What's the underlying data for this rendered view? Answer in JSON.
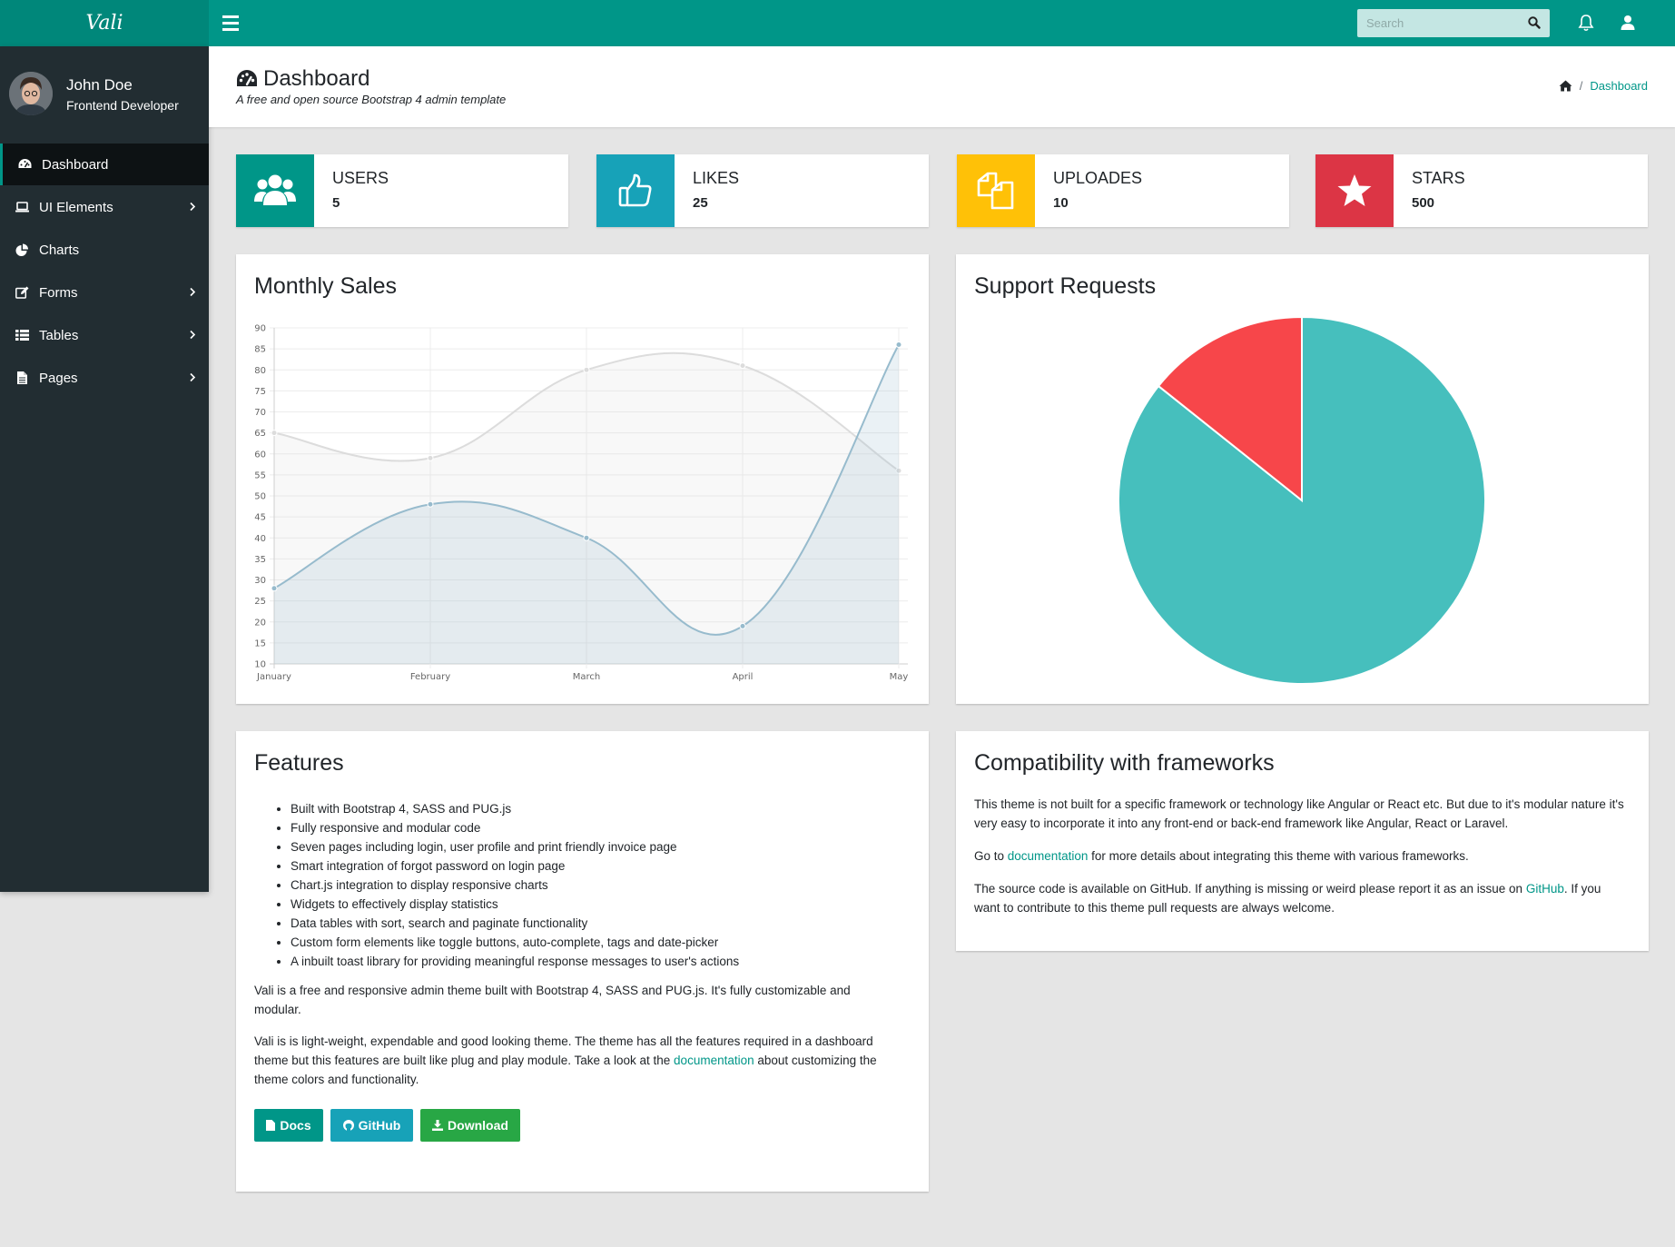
{
  "brand": "Vali",
  "search": {
    "placeholder": "Search"
  },
  "user": {
    "name": "John Doe",
    "role": "Frontend Developer"
  },
  "sidebar": {
    "items": [
      {
        "label": "Dashboard",
        "icon": "dashboard-icon",
        "active": true,
        "has_children": false
      },
      {
        "label": "UI Elements",
        "icon": "laptop-icon",
        "active": false,
        "has_children": true
      },
      {
        "label": "Charts",
        "icon": "pie-chart-icon",
        "active": false,
        "has_children": false
      },
      {
        "label": "Forms",
        "icon": "edit-icon",
        "active": false,
        "has_children": true
      },
      {
        "label": "Tables",
        "icon": "table-icon",
        "active": false,
        "has_children": true
      },
      {
        "label": "Pages",
        "icon": "file-icon",
        "active": false,
        "has_children": true
      }
    ]
  },
  "header": {
    "title": "Dashboard",
    "subtitle": "A free and open source Bootstrap 4 admin template",
    "breadcrumb": "Dashboard"
  },
  "widgets": [
    {
      "label": "USERS",
      "value": "5",
      "color": "#009688",
      "icon": "users-icon"
    },
    {
      "label": "LIKES",
      "value": "25",
      "color": "#17a2b8",
      "icon": "thumbs-up-icon"
    },
    {
      "label": "UPLOADES",
      "value": "10",
      "color": "#ffc107",
      "icon": "files-icon"
    },
    {
      "label": "STARS",
      "value": "500",
      "color": "#dc3545",
      "icon": "star-icon"
    }
  ],
  "monthly_sales": {
    "title": "Monthly Sales"
  },
  "support": {
    "title": "Support Requests"
  },
  "chart_data": [
    {
      "type": "line",
      "title": "Monthly Sales",
      "categories": [
        "January",
        "February",
        "March",
        "April",
        "May"
      ],
      "ylim": [
        10,
        90
      ],
      "yticks": [
        10,
        15,
        20,
        25,
        30,
        35,
        40,
        45,
        50,
        55,
        60,
        65,
        70,
        75,
        80,
        85,
        90
      ],
      "grid": true,
      "series": [
        {
          "values": [
            65,
            59,
            80,
            81,
            56
          ],
          "color": "#dcdcdc"
        },
        {
          "values": [
            28,
            48,
            40,
            19,
            86
          ],
          "color": "#97bbcd"
        }
      ]
    },
    {
      "type": "pie",
      "title": "Support Requests",
      "values": [
        300,
        50
      ],
      "colors": [
        "#46BFBD",
        "#F7464A"
      ]
    }
  ],
  "features": {
    "title": "Features",
    "items": [
      "Built with Bootstrap 4, SASS and PUG.js",
      "Fully responsive and modular code",
      "Seven pages including login, user profile and print friendly invoice page",
      "Smart integration of forgot password on login page",
      "Chart.js integration to display responsive charts",
      "Widgets to effectively display statistics",
      "Data tables with sort, search and paginate functionality",
      "Custom form elements like toggle buttons, auto-complete, tags and date-picker",
      "A inbuilt toast library for providing meaningful response messages to user's actions"
    ],
    "para1": "Vali is a free and responsive admin theme built with Bootstrap 4, SASS and PUG.js. It's fully customizable and modular.",
    "para2_before": "Vali is is light-weight, expendable and good looking theme. The theme has all the features required in a dashboard theme but this features are built like plug and play module. Take a look at the ",
    "para2_link": "documentation",
    "para2_after": " about customizing the theme colors and functionality.",
    "buttons": [
      {
        "label": "Docs",
        "color": "#009688",
        "icon": "file-icon"
      },
      {
        "label": "GitHub",
        "color": "#17a2b8",
        "icon": "github-icon"
      },
      {
        "label": "Download",
        "color": "#28a745",
        "icon": "download-icon"
      }
    ]
  },
  "compat": {
    "title": "Compatibility with frameworks",
    "para1": "This theme is not built for a specific framework or technology like Angular or React etc. But due to it's modular nature it's very easy to incorporate it into any front-end or back-end framework like Angular, React or Laravel.",
    "para2_before": "Go to ",
    "para2_link": "documentation",
    "para2_after": " for more details about integrating this theme with various frameworks.",
    "para3_before": "The source code is available on GitHub. If anything is missing or weird please report it as an issue on ",
    "para3_link": "GitHub",
    "para3_after": ". If you want to contribute to this theme pull requests are always welcome."
  }
}
